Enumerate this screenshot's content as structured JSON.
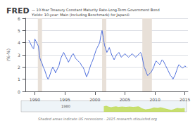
{
  "chart_data": [
    {
      "type": "line",
      "title": "FRED",
      "subtitle": "— 10-Year Treasury Constant Maturity Rate-Long-Term Government Bond\nYields: 10-year: Main (Including Benchmark) for Japan©",
      "ylabel": "(%-%)",
      "x": [
        1989.0,
        1989.2,
        1989.4,
        1989.6,
        1989.8,
        1990.0,
        1990.2,
        1990.4,
        1990.6,
        1990.8,
        1991.0,
        1991.2,
        1991.4,
        1991.6,
        1991.8,
        1992.0,
        1992.2,
        1992.4,
        1992.6,
        1992.8,
        1993.0,
        1993.2,
        1993.4,
        1993.4,
        1993.6,
        1993.8,
        1994.0,
        1994.2,
        1994.4,
        1994.6,
        1994.8,
        1995.0,
        1995.2,
        1995.4,
        1995.6,
        1995.8,
        1996.0,
        1996.2,
        1996.4,
        1996.6,
        1996.8,
        1997.0,
        1997.2,
        1997.4,
        1997.6,
        1997.8,
        1998.0,
        1998.2,
        1998.4,
        1998.6,
        1998.8,
        1999.0,
        1999.2,
        1999.4,
        1999.6,
        1999.8,
        2000.0,
        2000.2,
        2000.4,
        2000.6,
        2000.8,
        2001.0,
        2001.2,
        2001.4,
        2001.6,
        2001.8,
        2002.0,
        2002.2,
        2002.4,
        2002.6,
        2002.8,
        2003.0,
        2003.2,
        2003.4,
        2003.6,
        2003.8,
        2004.0,
        2004.2,
        2004.4,
        2004.6,
        2004.8,
        2005.0,
        2005.2,
        2005.4,
        2005.6,
        2005.8,
        2006.0,
        2006.2,
        2006.4,
        2006.6,
        2006.8,
        2007.0,
        2007.2,
        2007.4,
        2007.6,
        2007.8,
        2008.0,
        2008.2,
        2008.4,
        2008.6,
        2008.8,
        2009.0,
        2009.2,
        2009.4,
        2009.6,
        2009.8,
        2010.0,
        2010.2,
        2010.4,
        2010.6,
        2010.8,
        2011.0,
        2011.2,
        2011.4,
        2011.6,
        2011.8,
        2012.0,
        2012.2,
        2012.4,
        2012.6,
        2012.8,
        2013.0,
        2013.2,
        2013.4,
        2013.6,
        2013.8,
        2014.0,
        2014.2,
        2014.4,
        2014.6,
        2014.8,
        2015.0,
        2015.2
      ],
      "values": [
        4.2,
        4.0,
        3.8,
        3.6,
        3.5,
        4.3,
        4.1,
        3.9,
        3.7,
        2.8,
        2.5,
        2.3,
        2.0,
        1.8,
        1.5,
        1.2,
        1.0,
        1.2,
        1.5,
        1.8,
        2.0,
        1.8,
        1.6,
        1.5,
        1.7,
        1.9,
        2.1,
        2.5,
        2.8,
        3.0,
        3.2,
        3.0,
        2.8,
        2.6,
        2.4,
        2.6,
        2.8,
        3.0,
        3.1,
        2.9,
        2.7,
        2.6,
        2.5,
        2.4,
        2.3,
        2.1,
        2.0,
        1.8,
        1.5,
        1.2,
        1.4,
        1.7,
        2.0,
        2.3,
        2.5,
        2.8,
        3.1,
        3.4,
        3.6,
        3.8,
        4.0,
        4.6,
        5.0,
        4.4,
        3.8,
        3.5,
        3.2,
        3.4,
        3.6,
        3.3,
        3.0,
        2.8,
        2.6,
        2.8,
        3.0,
        3.1,
        3.2,
        3.0,
        2.8,
        2.9,
        3.0,
        3.1,
        3.0,
        2.9,
        2.8,
        2.9,
        3.0,
        3.1,
        3.0,
        2.9,
        2.8,
        2.9,
        3.0,
        3.1,
        3.2,
        3.0,
        2.5,
        2.0,
        1.8,
        1.5,
        1.3,
        1.4,
        1.5,
        1.6,
        1.8,
        2.0,
        2.3,
        2.5,
        2.4,
        2.3,
        2.2,
        2.4,
        2.6,
        2.5,
        2.3,
        2.1,
        1.9,
        1.7,
        1.5,
        1.3,
        1.2,
        1.0,
        1.2,
        1.4,
        1.7,
        2.0,
        2.2,
        2.1,
        2.0,
        1.9,
        2.0,
        2.1,
        2.0
      ],
      "xlim": [
        1988.5,
        2015.5
      ],
      "xticks": [
        1990,
        1995,
        2000,
        2005,
        2010,
        2015
      ],
      "ylim": [
        0,
        6
      ],
      "yticks": [
        0,
        1,
        2,
        3,
        4,
        5,
        6
      ],
      "grid": true,
      "recession_bands": [
        [
          1990.5,
          1991.2
        ],
        [
          2001.2,
          2001.9
        ],
        [
          2007.9,
          2009.5
        ]
      ],
      "annotations": [
        "Shaded areas indicate US recessions - 2015 research.stlouisfed.org"
      ]
    },
    {
      "type": "area",
      "x": [
        2002.0,
        2002.2,
        2002.4,
        2002.6,
        2002.8,
        2003.0,
        2003.2,
        2003.4,
        2003.6,
        2003.8,
        2004.0,
        2004.2,
        2004.4,
        2004.6,
        2004.8,
        2005.0,
        2005.2,
        2005.4,
        2005.6,
        2005.8,
        2006.0,
        2006.2,
        2006.4,
        2006.6,
        2006.8,
        2007.0,
        2007.2,
        2007.4,
        2007.6,
        2007.8,
        2008.0,
        2008.2,
        2008.4,
        2008.6,
        2008.8,
        2009.0,
        2009.2,
        2009.4,
        2009.6,
        2009.8,
        2010.0,
        2010.2,
        2010.4,
        2010.6,
        2010.8,
        2011.0,
        2011.2,
        2011.4,
        2011.6,
        2011.8,
        2012.0,
        2012.2,
        2012.4,
        2012.6,
        2012.8,
        2013.0,
        2013.2,
        2013.4,
        2013.6,
        2013.8,
        2014.0,
        2014.2,
        2014.4,
        2014.6,
        2014.8,
        2015.0,
        2015.2
      ],
      "values": [
        3.2,
        3.4,
        3.6,
        3.3,
        3.0,
        2.8,
        2.6,
        2.8,
        3.0,
        3.1,
        3.2,
        3.0,
        2.8,
        2.9,
        3.0,
        3.1,
        3.0,
        2.9,
        2.8,
        2.9,
        3.0,
        3.1,
        3.0,
        2.9,
        2.8,
        2.9,
        3.0,
        3.1,
        3.2,
        3.0,
        2.5,
        2.0,
        1.8,
        1.5,
        1.3,
        1.4,
        1.5,
        1.6,
        1.8,
        2.0,
        2.3,
        2.5,
        2.4,
        2.3,
        2.2,
        2.4,
        2.6,
        2.5,
        2.3,
        2.1,
        1.9,
        1.7,
        1.5,
        1.3,
        1.2,
        1.0,
        1.2,
        1.4,
        1.7,
        2.0,
        2.2,
        2.1,
        2.0,
        1.9,
        2.0,
        2.1,
        2.0
      ],
      "xlim": [
        1988.5,
        2015.5
      ],
      "ylim": [
        0,
        7
      ],
      "tick_labels": false,
      "annotations": [
        "1980"
      ]
    }
  ]
}
